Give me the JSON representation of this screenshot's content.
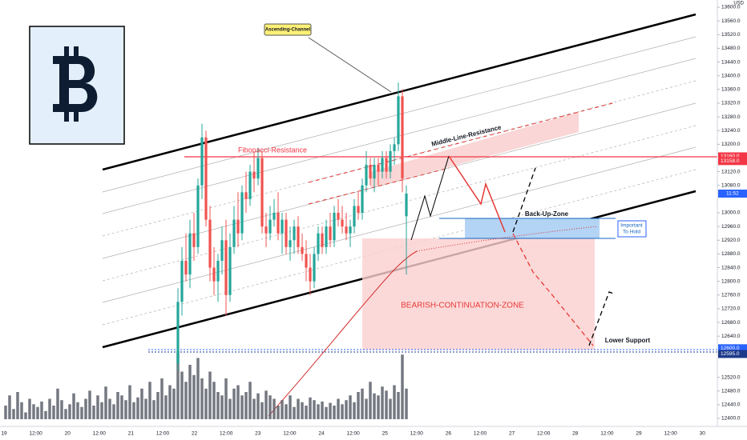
{
  "chart_data": {
    "type": "candlestick",
    "currency": "USD",
    "ylim": [
      12400,
      13600
    ],
    "yticks": [
      {
        "value": 13600,
        "label": "13600.0"
      },
      {
        "value": 13560,
        "label": "13560.0"
      },
      {
        "value": 13520,
        "label": "13520.0"
      },
      {
        "value": 13480,
        "label": "13480.0"
      },
      {
        "value": 13440,
        "label": "13440.0"
      },
      {
        "value": 13400,
        "label": "13400.0"
      },
      {
        "value": 13360,
        "label": "13360.0"
      },
      {
        "value": 13320,
        "label": "13320.0"
      },
      {
        "value": 13280,
        "label": "13280.0"
      },
      {
        "value": 13240,
        "label": "13240.0"
      },
      {
        "value": 13200,
        "label": "13200.0"
      },
      {
        "value": 13120,
        "label": "13120.0"
      },
      {
        "value": 13080,
        "label": "13080.0"
      },
      {
        "value": 13000,
        "label": "13000.0"
      },
      {
        "value": 12960,
        "label": "12960.0"
      },
      {
        "value": 12920,
        "label": "12920.0"
      },
      {
        "value": 12880,
        "label": "12880.0"
      },
      {
        "value": 12840,
        "label": "12840.0"
      },
      {
        "value": 12800,
        "label": "12800.0"
      },
      {
        "value": 12760,
        "label": "12760.0"
      },
      {
        "value": 12720,
        "label": "12720.0"
      },
      {
        "value": 12680,
        "label": "12680.0"
      },
      {
        "value": 12640,
        "label": "12640.0"
      },
      {
        "value": 12520,
        "label": "12520.0"
      },
      {
        "value": 12480,
        "label": "12480.0"
      },
      {
        "value": 12440,
        "label": "12440.0"
      },
      {
        "value": 12400,
        "label": "12400.0"
      }
    ],
    "x_labels": [
      "19",
      "12:00",
      "20",
      "12:00",
      "21",
      "12:00",
      "22",
      "12:00",
      "23",
      "12:00",
      "24",
      "12:00",
      "25",
      "12:00",
      "26",
      "12:00",
      "27",
      "12:00",
      "28",
      "12:00",
      "29",
      "12:00",
      "30"
    ],
    "up_color": "#26a69a",
    "down_color": "#ef5350",
    "volume_color": "#5d606b",
    "candles": [
      [
        12560,
        12780,
        12540,
        12740
      ],
      [
        12740,
        12900,
        12700,
        12860
      ],
      [
        12860,
        12940,
        12800,
        12820
      ],
      [
        12820,
        12980,
        12780,
        12940
      ],
      [
        12940,
        13000,
        12860,
        12900
      ],
      [
        12900,
        13100,
        12880,
        13080
      ],
      [
        13080,
        13260,
        13040,
        13220
      ],
      [
        13220,
        13240,
        12960,
        12980
      ],
      [
        12980,
        13020,
        12800,
        12840
      ],
      [
        12840,
        12900,
        12760,
        12800
      ],
      [
        12800,
        12880,
        12740,
        12860
      ],
      [
        12860,
        12960,
        12820,
        12920
      ],
      [
        12920,
        12980,
        12700,
        12760
      ],
      [
        12760,
        12940,
        12740,
        12900
      ],
      [
        12900,
        13020,
        12880,
        12980
      ],
      [
        12980,
        13060,
        12900,
        12940
      ],
      [
        12940,
        13080,
        12920,
        13060
      ],
      [
        13060,
        13120,
        13000,
        13040
      ],
      [
        13040,
        13140,
        13020,
        13120
      ],
      [
        13120,
        13180,
        13060,
        13100
      ],
      [
        13100,
        13190,
        13080,
        13160
      ],
      [
        13160,
        13180,
        12940,
        12960
      ],
      [
        12960,
        13000,
        12900,
        12940
      ],
      [
        12940,
        13020,
        12920,
        12980
      ],
      [
        12980,
        13040,
        12960,
        13000
      ],
      [
        13000,
        13060,
        12920,
        12940
      ],
      [
        12940,
        13000,
        12880,
        12980
      ],
      [
        12980,
        13000,
        12880,
        12900
      ],
      [
        12900,
        12960,
        12860,
        12920
      ],
      [
        12920,
        12980,
        12880,
        12960
      ],
      [
        12960,
        12990,
        12880,
        12900
      ],
      [
        12900,
        12940,
        12860,
        12880
      ],
      [
        12880,
        12920,
        12800,
        12840
      ],
      [
        12840,
        12880,
        12760,
        12800
      ],
      [
        12800,
        12900,
        12780,
        12880
      ],
      [
        12880,
        12960,
        12860,
        12940
      ],
      [
        12940,
        12960,
        12880,
        12900
      ],
      [
        12900,
        12980,
        12880,
        12960
      ],
      [
        12960,
        13000,
        12900,
        12920
      ],
      [
        12920,
        13020,
        12900,
        13000
      ],
      [
        13000,
        13040,
        12960,
        12980
      ],
      [
        12980,
        13020,
        12940,
        12960
      ],
      [
        12960,
        13000,
        12920,
        12940
      ],
      [
        12940,
        12980,
        12900,
        12960
      ],
      [
        12960,
        13040,
        12940,
        13020
      ],
      [
        13020,
        13060,
        12980,
        13000
      ],
      [
        13000,
        13100,
        12980,
        13080
      ],
      [
        13080,
        13180,
        13060,
        13140
      ],
      [
        13140,
        13160,
        13080,
        13100
      ],
      [
        13100,
        13160,
        13060,
        13140
      ],
      [
        13140,
        13160,
        13080,
        13120
      ],
      [
        13120,
        13180,
        13100,
        13160
      ],
      [
        13160,
        13180,
        13100,
        13120
      ],
      [
        13120,
        13200,
        13100,
        13180
      ],
      [
        13180,
        13220,
        13140,
        13200
      ],
      [
        13200,
        13380,
        13180,
        13340
      ],
      [
        13340,
        13360,
        13060,
        13100
      ],
      [
        12990,
        13080,
        12820,
        13056
      ]
    ],
    "volumes": [
      20,
      35,
      15,
      40,
      25,
      10,
      30,
      22,
      18,
      26,
      12,
      30,
      20,
      45,
      28,
      15,
      22,
      38,
      25,
      18,
      30,
      42,
      20,
      35,
      25,
      48,
      30,
      22,
      40,
      35,
      28,
      50,
      25,
      32,
      45,
      30,
      55,
      28,
      40,
      60,
      35,
      50,
      45,
      100,
      70,
      55,
      80,
      65,
      90,
      60,
      45,
      70,
      55,
      40,
      35,
      60,
      30,
      45,
      50,
      35,
      40,
      55,
      30,
      38,
      25,
      42,
      35,
      30,
      20,
      28,
      22,
      35,
      18,
      30,
      25,
      20,
      32,
      28,
      22,
      26,
      18,
      24,
      20,
      30,
      22,
      28,
      35,
      25,
      40,
      45,
      30,
      55,
      38,
      35,
      48,
      42,
      30,
      50,
      40,
      95,
      45
    ],
    "price_tags": [
      {
        "value": 13160,
        "label": "13160.0",
        "color": "#f23645"
      },
      {
        "value": 13158,
        "label": "13158.0",
        "color": "#f23645"
      },
      {
        "value": 12600,
        "label": "12600.0",
        "color": "#2962ff"
      },
      {
        "value": 12595,
        "label": "12595.0",
        "color": "#1e3a8a"
      }
    ],
    "countdown": {
      "label": "11:52",
      "color": "#2962ff"
    },
    "annotations": {
      "ascending_channel": "Ascending-Channel",
      "fibonacci": "Fibonacci-Resistance",
      "middle_line": "Middle-Line-Resistance",
      "backup_zone": "Back-Up-Zone",
      "important_1": "Important",
      "important_2": "To Hold",
      "bearish_zone": "BEARISH-CONTINUATION-ZONE",
      "lower_support": "Lower Support"
    }
  }
}
